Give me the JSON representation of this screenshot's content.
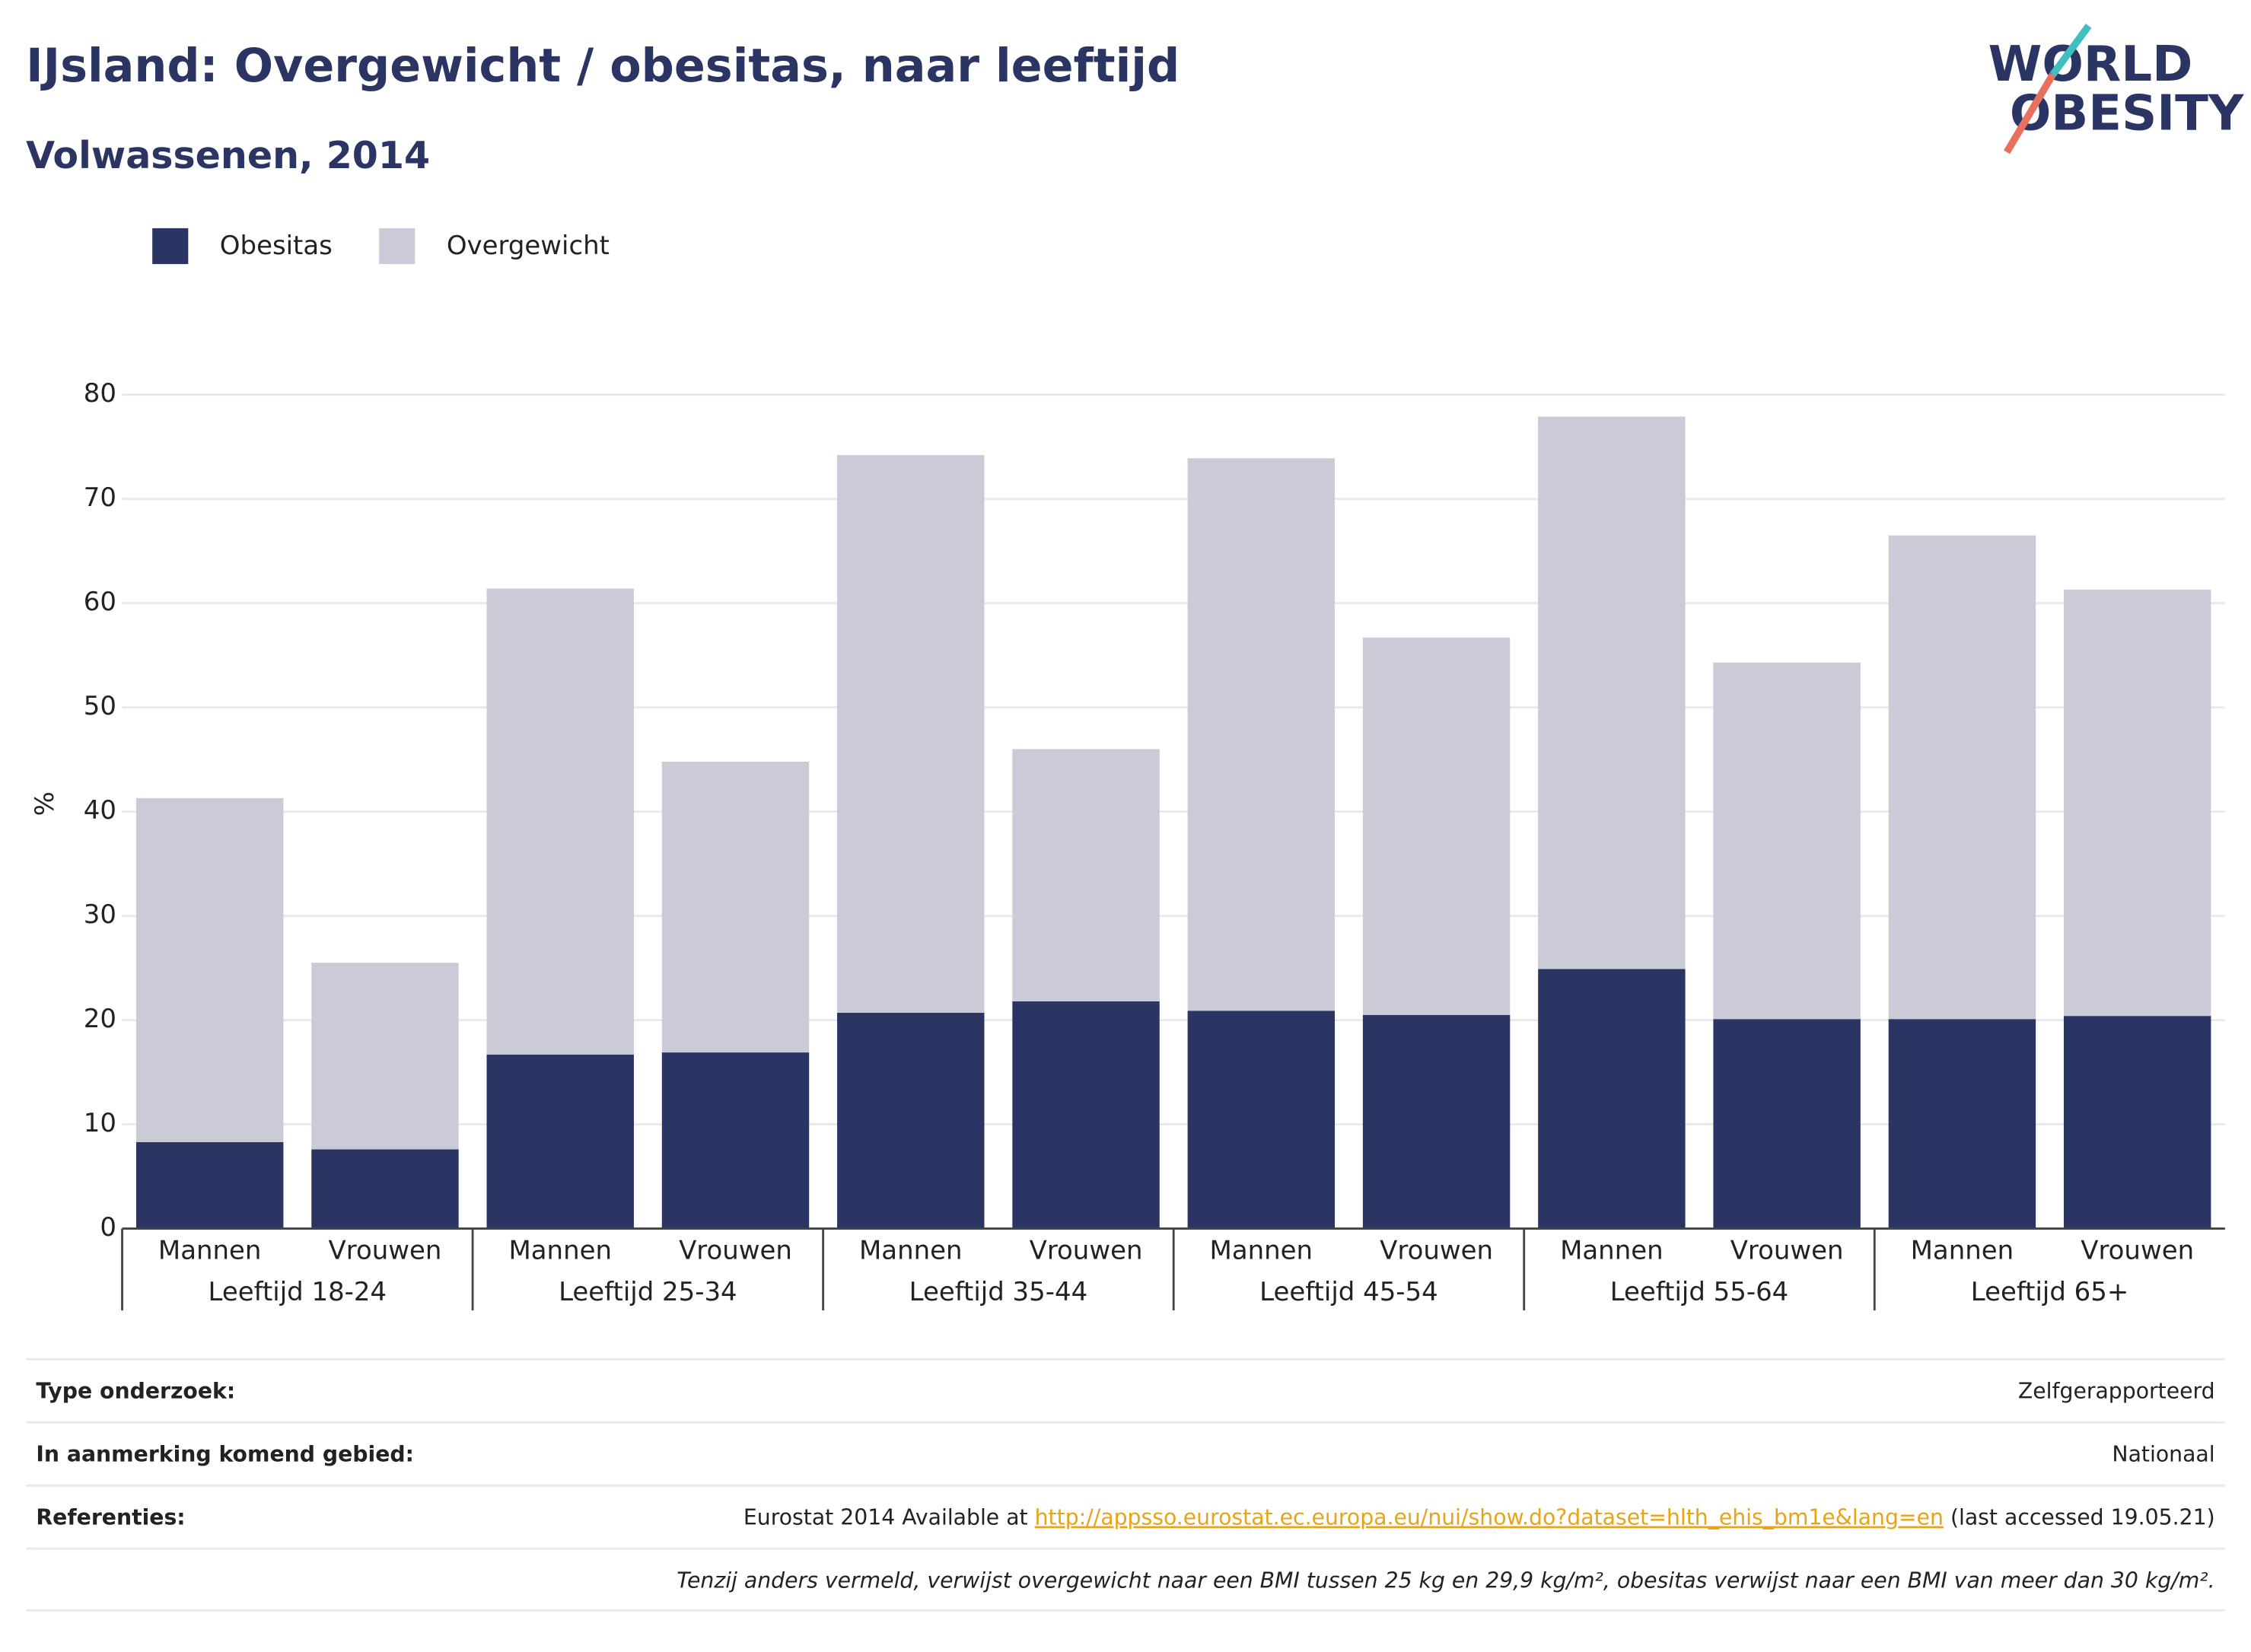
{
  "title": "IJsland: Overgewicht / obesitas, naar leeftijd",
  "subtitle": "Volwassenen, 2014",
  "logo": {
    "line1": "WORLD",
    "line2": "OBESITY"
  },
  "chart_data": {
    "type": "stacked_bar",
    "categories": [
      "Mannen",
      "Vrouwen",
      "Mannen",
      "Vrouwen",
      "Mannen",
      "Vrouwen",
      "Mannen",
      "Vrouwen",
      "Mannen",
      "Vrouwen",
      "Mannen",
      "Vrouwen"
    ],
    "groups": [
      "Leeftijd 18-24",
      "Leeftijd 25-34",
      "Leeftijd 35-44",
      "Leeftijd 45-54",
      "Leeftijd 55-64",
      "Leeftijd 65+"
    ],
    "series": [
      {
        "name": "Obesitas",
        "color": "#2a3563",
        "values": [
          8.3,
          7.6,
          16.7,
          16.9,
          20.7,
          21.8,
          20.9,
          20.5,
          24.9,
          20.1,
          20.1,
          20.4
        ]
      },
      {
        "name": "Overgewicht",
        "color": "#cacbd7",
        "values": [
          33.0,
          17.9,
          44.7,
          27.9,
          53.5,
          24.2,
          53.0,
          36.2,
          53.0,
          34.2,
          46.4,
          40.9
        ]
      }
    ],
    "ylabel": "%",
    "ylim": [
      0,
      80
    ],
    "yticks": [
      0,
      10,
      20,
      30,
      40,
      50,
      60,
      70,
      80
    ],
    "grid": true
  },
  "footer": {
    "rows": [
      {
        "label": "Type onderzoek:",
        "value": "Zelfgerapporteerd"
      },
      {
        "label": "In aanmerking komend gebied:",
        "value": "Nationaal"
      },
      {
        "label": "Referenties:",
        "value": {
          "before": "Eurostat 2014 Available at ",
          "link": "http://appsso.eurostat.ec.europa.eu/nui/show.do?dataset=hlth_ehis_bm1e&lang=en",
          "after": " (last accessed 19.05.21)"
        }
      }
    ],
    "note": "Tenzij anders vermeld, verwijst overgewicht naar een BMI tussen 25 kg en 29,9 kg/m², obesitas verwijst naar een BMI van meer dan 30 kg/m²."
  }
}
